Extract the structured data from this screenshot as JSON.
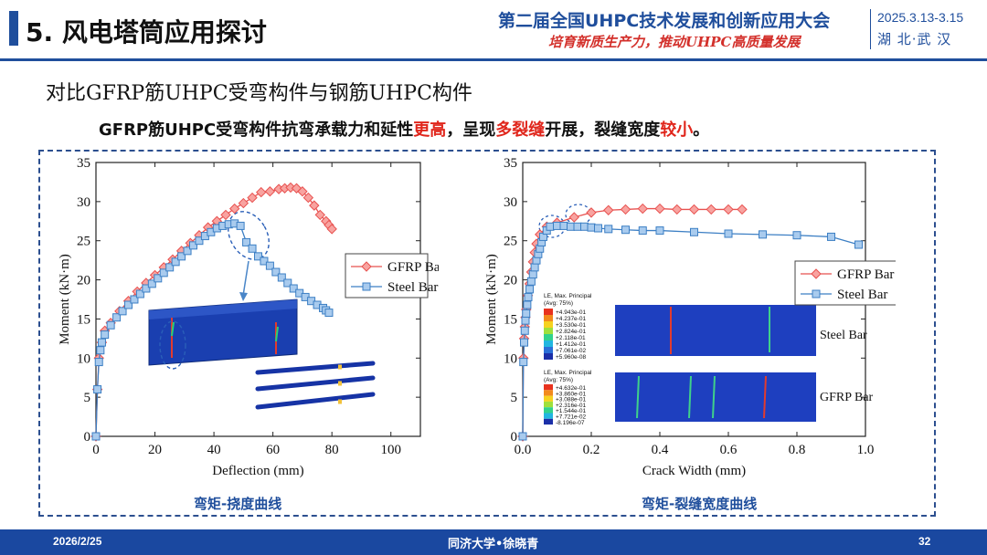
{
  "header": {
    "section_title": "5. 风电塔筒应用探讨",
    "conference": "第二届全国UHPC技术发展和创新应用大会",
    "slogan": "培育新质生产力，推动UHPC高质量发展",
    "date": "2025.3.13-3.15",
    "location": "湖 北·武 汉"
  },
  "subtitle": "对比GFRP筋UHPC受弯构件与钢筋UHPC构件",
  "summary": {
    "part1": "GFRP筋UHPC受弯构件抗弯承载力和延性",
    "hl1": "更高",
    "part2": "，呈现",
    "hl2": "多裂缝",
    "part3": "开展，裂缝宽度",
    "hl3": "较小",
    "part4": "。"
  },
  "colors": {
    "gfrp": "#e8514f",
    "steel": "#3c7fc4",
    "accent": "#1f4e9c",
    "highlight": "#e0261c"
  },
  "chart_data": [
    {
      "type": "line",
      "xlabel": "Deflection (mm)",
      "ylabel": "Moment (kN·m)",
      "xlim": [
        0,
        110
      ],
      "ylim": [
        0,
        35
      ],
      "xticks": [
        0,
        20,
        40,
        60,
        80,
        100
      ],
      "yticks": [
        0,
        5,
        10,
        15,
        20,
        25,
        30,
        35
      ],
      "legend_position": "right",
      "series": [
        {
          "name": "GFRP Bar",
          "marker": "diamond",
          "x": [
            0,
            0.5,
            1,
            2,
            3,
            5,
            8,
            11,
            14,
            17,
            20,
            23,
            26,
            29,
            32,
            35,
            38,
            41,
            44,
            47,
            50,
            53,
            56,
            59,
            62,
            64,
            66,
            68,
            70,
            72,
            74,
            76,
            78,
            79,
            80
          ],
          "y": [
            0,
            6,
            10,
            12,
            13.5,
            14.5,
            16,
            17.3,
            18.5,
            19.6,
            20.6,
            21.6,
            22.6,
            23.7,
            24.7,
            25.7,
            26.7,
            27.5,
            28.3,
            29.1,
            29.8,
            30.5,
            31.2,
            31.3,
            31.6,
            31.7,
            31.8,
            31.7,
            31.3,
            30.5,
            29.5,
            28.3,
            27.5,
            27.0,
            26.5
          ]
        },
        {
          "name": "Steel Bar",
          "marker": "square",
          "x": [
            0,
            0.5,
            1,
            1.5,
            2,
            3,
            5,
            7,
            9,
            11,
            13,
            15,
            17,
            19,
            21,
            23,
            25,
            27,
            29,
            31,
            33,
            35,
            37,
            39,
            41,
            43,
            45,
            47,
            49,
            51,
            53,
            55,
            57,
            59,
            61,
            63,
            65,
            67,
            69,
            71,
            73,
            75,
            77,
            78,
            79
          ],
          "y": [
            0,
            6,
            9.5,
            11,
            12,
            13,
            14.2,
            15.2,
            16,
            16.8,
            17.5,
            18.2,
            18.9,
            19.5,
            20.2,
            20.9,
            21.6,
            22.3,
            23,
            23.7,
            24.4,
            25,
            25.6,
            26.1,
            26.6,
            26.9,
            27.1,
            27.2,
            26.9,
            24.8,
            24.0,
            23.0,
            22.4,
            21.8,
            21.0,
            20.3,
            19.6,
            18.9,
            18.3,
            17.8,
            17.3,
            16.8,
            16.4,
            16.1,
            15.8
          ]
        }
      ]
    },
    {
      "type": "line",
      "xlabel": "Crack Width (mm)",
      "ylabel": "Moment (kN·m)",
      "xlim": [
        0,
        1.0
      ],
      "ylim": [
        0,
        35
      ],
      "xticks": [
        0.0,
        0.2,
        0.4,
        0.6,
        0.8,
        1.0
      ],
      "yticks": [
        0,
        5,
        10,
        15,
        20,
        25,
        30,
        35
      ],
      "legend_position": "right",
      "series": [
        {
          "name": "GFRP Bar",
          "marker": "diamond",
          "x": [
            0,
            0.002,
            0.004,
            0.006,
            0.008,
            0.01,
            0.015,
            0.02,
            0.025,
            0.03,
            0.035,
            0.04,
            0.05,
            0.07,
            0.1,
            0.15,
            0.2,
            0.25,
            0.3,
            0.35,
            0.4,
            0.45,
            0.5,
            0.55,
            0.6,
            0.64
          ],
          "y": [
            0,
            10,
            12.5,
            14,
            15.2,
            16.2,
            18,
            19.5,
            21,
            22.3,
            23.5,
            24.6,
            25.8,
            26.8,
            27.3,
            28.0,
            28.6,
            28.9,
            29.0,
            29.1,
            29.1,
            29.0,
            29.0,
            29.0,
            29.0,
            29.0
          ]
        },
        {
          "name": "Steel Bar",
          "marker": "square",
          "x": [
            0,
            0.002,
            0.004,
            0.006,
            0.008,
            0.01,
            0.013,
            0.016,
            0.02,
            0.025,
            0.03,
            0.035,
            0.04,
            0.045,
            0.05,
            0.055,
            0.06,
            0.07,
            0.08,
            0.1,
            0.12,
            0.14,
            0.16,
            0.18,
            0.2,
            0.22,
            0.25,
            0.3,
            0.35,
            0.4,
            0.5,
            0.6,
            0.7,
            0.8,
            0.9,
            0.98
          ],
          "y": [
            0,
            9.5,
            12,
            13.5,
            14.8,
            15.7,
            16.8,
            17.8,
            18.8,
            19.8,
            20.7,
            21.6,
            22.5,
            23.3,
            24,
            24.8,
            25.5,
            26.3,
            26.8,
            26.9,
            26.9,
            26.8,
            26.8,
            26.8,
            26.7,
            26.6,
            26.5,
            26.4,
            26.3,
            26.3,
            26.1,
            25.9,
            25.8,
            25.7,
            25.5,
            24.5
          ]
        }
      ]
    }
  ],
  "inset_right": {
    "top_legend_title": "LE, Max. Principal",
    "top_legend_avg": "(Avg: 75%)",
    "top_legend_values": [
      "+4.943e-01",
      "+4.237e-01",
      "+3.530e-01",
      "+2.824e-01",
      "+2.118e-01",
      "+1.412e-01",
      "+7.061e-02",
      "+5.960e-08"
    ],
    "bottom_legend_title": "LE, Max. Principal",
    "bottom_legend_avg": "(Avg: 75%)",
    "bottom_legend_values": [
      "+4.632e-01",
      "+3.860e-01",
      "+3.088e-01",
      "+2.316e-01",
      "+1.544e-01",
      "+7.721e-02",
      "-8.196e-07"
    ],
    "top_label": "Steel Bar",
    "bottom_label": "GFRP Bar"
  },
  "captions": {
    "left": "弯矩-挠度曲线",
    "right": "弯矩-裂缝宽度曲线"
  },
  "footer": {
    "date": "2026/2/25",
    "author": "同济大学•徐晓青",
    "page": "32"
  }
}
